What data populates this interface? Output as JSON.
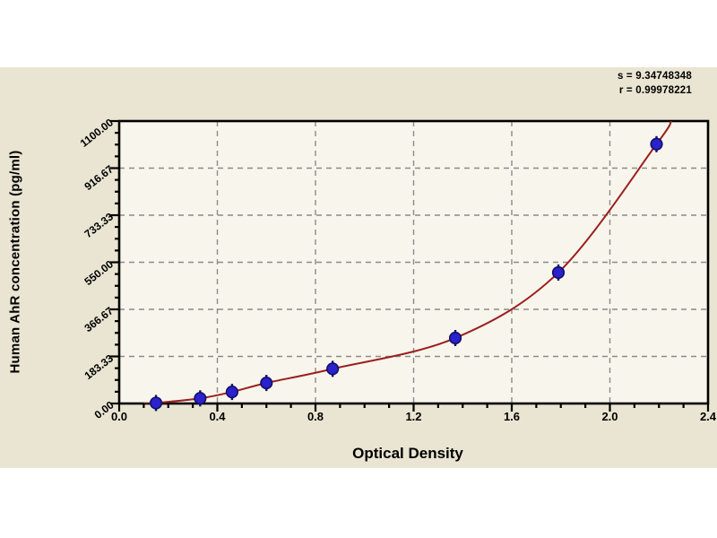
{
  "page": {
    "background": "#ffffff",
    "panel_background": "#e9e5d2",
    "plot_background": "#f8f6ec"
  },
  "stats": {
    "s_line": "s = 9.34748348",
    "r_line": "r = 0.99978221"
  },
  "chart_data": {
    "type": "scatter",
    "title": "",
    "xlabel": "Optical Density",
    "ylabel": "Human AhR concentration (pg/ml)",
    "xlim": [
      0,
      2.4
    ],
    "ylim": [
      0,
      1100
    ],
    "x_tick_values": [
      0.0,
      0.4,
      0.8,
      1.2,
      1.6,
      2.0,
      2.4
    ],
    "x_tick_labels": [
      "0.0",
      "0.4",
      "0.8",
      "1.2",
      "1.6",
      "2.0",
      "2.4"
    ],
    "x_minor_step": 0.1,
    "y_tick_values": [
      0,
      183.33,
      366.67,
      550,
      733.33,
      916.67,
      1100
    ],
    "y_tick_labels": [
      "0.00",
      "183.33",
      "366.67",
      "550.00",
      "733.33",
      "916.67",
      "1100.00"
    ],
    "y_minor_divisions": 4,
    "grid": {
      "show": true,
      "style": "dashed",
      "color": "#8a8a8a",
      "on": "major-ticks"
    },
    "legend": {
      "show": false
    },
    "series": [
      {
        "name": "standard-points",
        "type": "scatter",
        "color": "#2a22cc",
        "edge_color": "#121063",
        "x": [
          0.15,
          0.33,
          0.46,
          0.6,
          0.87,
          1.37,
          1.79,
          2.19
        ],
        "y": [
          2,
          20,
          45,
          80,
          135,
          255,
          510,
          1010
        ]
      },
      {
        "name": "fit-curve",
        "type": "line",
        "color": "#9b1f1f",
        "extend_from": [
          0.1,
          0
        ],
        "extend_to": [
          2.25,
          1100
        ]
      }
    ],
    "stats": {
      "s": "9.34748348",
      "r": "0.99978221"
    }
  }
}
